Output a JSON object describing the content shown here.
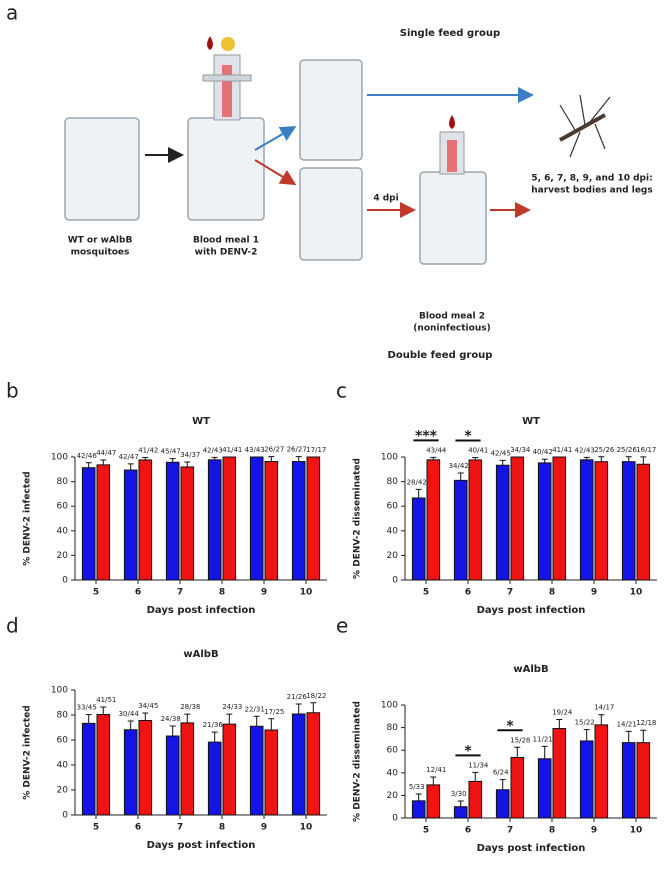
{
  "diagram": {
    "panel_label": "a",
    "single_feed": "Single feed group",
    "double_feed": "Double feed group",
    "start": [
      "WT or wAlbB",
      "mosquitoes"
    ],
    "meal1": [
      "Blood meal 1",
      "with DENV-2"
    ],
    "interval": "4 dpi",
    "meal2": [
      "Blood meal 2",
      "(noninfectious)"
    ],
    "harvest": [
      "5, 6, 7, 8, 9, and 10 dpi:",
      "harvest bodies and legs"
    ]
  },
  "chart_data": [
    {
      "type": "bar",
      "panel_label": "b",
      "title": "WT",
      "y_label": "% DENV-2 infected",
      "x_label": "Days post infection",
      "categories": [
        "5",
        "6",
        "7",
        "8",
        "9",
        "10"
      ],
      "ylim": [
        0,
        100
      ],
      "yticks": [
        0,
        20,
        40,
        60,
        80,
        100
      ],
      "series": [
        {
          "color": "#1414e6",
          "values": [
            91.3,
            89.4,
            95.7,
            97.7,
            100,
            96.3
          ],
          "errors": [
            4,
            5,
            3,
            2,
            0,
            4
          ],
          "value_labels": [
            "42/46",
            "42/47",
            "45/47",
            "42/43",
            "43/43",
            "26/27"
          ]
        },
        {
          "color": "#ee1414",
          "values": [
            93.6,
            97.6,
            91.9,
            100,
            96.3,
            100
          ],
          "errors": [
            4,
            2,
            4,
            0,
            4,
            0
          ],
          "value_labels": [
            "44/47",
            "41/42",
            "34/37",
            "41/41",
            "26/27",
            "17/17"
          ]
        }
      ],
      "annotations": []
    },
    {
      "type": "bar",
      "panel_label": "c",
      "title": "WT",
      "y_label": "% DENV-2 disseminated",
      "x_label": "Days post infection",
      "categories": [
        "5",
        "6",
        "7",
        "8",
        "9",
        "10"
      ],
      "ylim": [
        0,
        100
      ],
      "yticks": [
        0,
        20,
        40,
        60,
        80,
        100
      ],
      "series": [
        {
          "color": "#1414e6",
          "values": [
            66.7,
            81.0,
            93.3,
            95.2,
            97.7,
            96.2
          ],
          "errors": [
            7,
            6,
            4,
            3,
            2,
            4
          ],
          "value_labels": [
            "28/42",
            "34/42",
            "42/45",
            "40/42",
            "42/43",
            "25/26"
          ]
        },
        {
          "color": "#ee1414",
          "values": [
            97.7,
            97.6,
            100,
            100,
            96.2,
            94.1
          ],
          "errors": [
            2,
            2,
            0,
            0,
            4,
            6
          ],
          "value_labels": [
            "43/44",
            "40/41",
            "34/34",
            "41/41",
            "25/26",
            "16/17"
          ]
        }
      ],
      "annotations": [
        {
          "text": "***",
          "x": "5"
        },
        {
          "text": "*",
          "x": "6"
        }
      ]
    },
    {
      "type": "bar",
      "panel_label": "d",
      "title": "wAlbB",
      "y_label": "% DENV-2 infected",
      "x_label": "Days post infection",
      "categories": [
        "5",
        "6",
        "7",
        "8",
        "9",
        "10"
      ],
      "ylim": [
        0,
        100
      ],
      "yticks": [
        0,
        20,
        40,
        60,
        80,
        100
      ],
      "series": [
        {
          "color": "#1414e6",
          "values": [
            73.3,
            68.2,
            63.2,
            58.3,
            71.0,
            80.8
          ],
          "errors": [
            7,
            7,
            8,
            8,
            8,
            8
          ],
          "value_labels": [
            "33/45",
            "30/44",
            "24/38",
            "21/36",
            "22/31",
            "21/26"
          ]
        },
        {
          "color": "#ee1414",
          "values": [
            80.4,
            75.6,
            73.7,
            72.7,
            68.0,
            81.8
          ],
          "errors": [
            6,
            6,
            7,
            8,
            9,
            8
          ],
          "value_labels": [
            "41/51",
            "34/45",
            "28/38",
            "24/33",
            "17/25",
            "18/22"
          ]
        }
      ],
      "annotations": []
    },
    {
      "type": "bar",
      "panel_label": "e",
      "title": "wAlbB",
      "y_label": "% DENV-2 disseminated",
      "x_label": "Days post infection",
      "categories": [
        "5",
        "6",
        "7",
        "8",
        "9",
        "10"
      ],
      "ylim": [
        0,
        100
      ],
      "yticks": [
        0,
        20,
        40,
        60,
        80,
        100
      ],
      "series": [
        {
          "color": "#1414e6",
          "values": [
            15.2,
            10.0,
            25.0,
            52.4,
            68.2,
            66.7
          ],
          "errors": [
            6,
            5,
            9,
            11,
            10,
            10
          ],
          "value_labels": [
            "5/33",
            "3/30",
            "6/24",
            "11/21",
            "15/22",
            "14/21"
          ]
        },
        {
          "color": "#ee1414",
          "values": [
            29.3,
            32.4,
            53.6,
            79.2,
            82.4,
            66.7
          ],
          "errors": [
            7,
            8,
            9,
            8,
            9,
            11
          ],
          "value_labels": [
            "12/41",
            "11/34",
            "15/28",
            "19/24",
            "14/17",
            "12/18"
          ]
        }
      ],
      "annotations": [
        {
          "text": "*",
          "x": "6"
        },
        {
          "text": "*",
          "x": "7"
        }
      ]
    }
  ]
}
